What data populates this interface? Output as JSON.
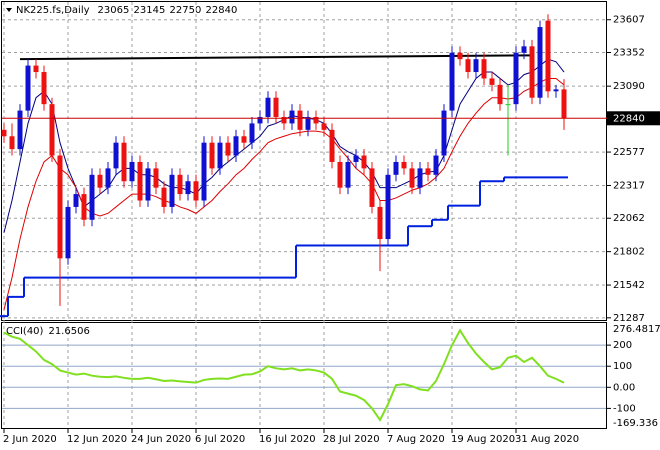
{
  "chart_data": [
    {
      "type": "candlestick",
      "title": "NK225.fs,Daily",
      "categories": [
        "2 Jun 2020",
        null,
        null,
        null,
        null,
        null,
        null,
        null,
        "12 Jun 2020",
        null,
        null,
        null,
        null,
        null,
        null,
        null,
        "24 Jun 2020",
        null,
        null,
        null,
        null,
        null,
        null,
        null,
        "6 Jul 2020",
        null,
        null,
        null,
        null,
        null,
        null,
        null,
        "16 Jul 2020",
        null,
        null,
        null,
        null,
        null,
        null,
        null,
        "28 Jul 2020",
        null,
        null,
        null,
        null,
        null,
        null,
        null,
        "7 Aug 2020",
        null,
        null,
        null,
        null,
        null,
        null,
        null,
        "19 Aug 2020",
        null,
        null,
        null,
        null,
        null,
        null,
        null,
        "31 Aug 2020",
        null,
        null,
        null,
        null,
        null,
        null
      ],
      "open": [
        22750,
        22700,
        22600,
        22900,
        23250,
        23200,
        22950,
        22550,
        21750,
        22150,
        22250,
        22050,
        22400,
        22300,
        22450,
        22650,
        22350,
        22500,
        22200,
        22450,
        22300,
        22150,
        22400,
        22250,
        22350,
        22200,
        22650,
        22450,
        22650,
        22550,
        22700,
        22650,
        22800,
        22850,
        23000,
        22850,
        22800,
        22900,
        22750,
        22850,
        22800,
        22750,
        22500,
        22300,
        22500,
        22550,
        22450,
        22150,
        21900,
        22400,
        22500,
        22450,
        22300,
        22450,
        22400,
        22550,
        22900,
        23350,
        23300,
        23200,
        23300,
        23150,
        23100,
        22950,
        22950,
        23350,
        23400,
        23000,
        23600,
        23050,
        23065
      ],
      "high": [
        22800,
        22800,
        22950,
        23300,
        23300,
        23250,
        23000,
        22600,
        22200,
        22300,
        22300,
        22450,
        22450,
        22500,
        22700,
        22700,
        22550,
        22550,
        22500,
        22500,
        22350,
        22450,
        22450,
        22400,
        22400,
        22700,
        22700,
        22700,
        22700,
        22750,
        22750,
        22850,
        22900,
        23050,
        23050,
        22900,
        22950,
        22950,
        22900,
        22900,
        22850,
        22800,
        22550,
        22550,
        22600,
        22600,
        22500,
        22200,
        22450,
        22550,
        22550,
        22500,
        22500,
        22500,
        22600,
        22950,
        23400,
        23400,
        23350,
        23350,
        23350,
        23200,
        23150,
        23100,
        23400,
        23450,
        23450,
        23600,
        23650,
        23100,
        23145
      ],
      "low": [
        22650,
        22550,
        22550,
        22850,
        23150,
        22900,
        22500,
        21380,
        21700,
        22100,
        22000,
        22000,
        22250,
        22250,
        22400,
        22300,
        22300,
        22150,
        22150,
        22250,
        22100,
        22100,
        22200,
        22200,
        22150,
        22150,
        22400,
        22400,
        22500,
        22500,
        22600,
        22600,
        22750,
        22800,
        22800,
        22750,
        22750,
        22700,
        22700,
        22750,
        22700,
        22450,
        22250,
        22250,
        22450,
        22400,
        22100,
        21650,
        21850,
        22350,
        22400,
        22250,
        22250,
        22350,
        22350,
        22500,
        22850,
        23250,
        23150,
        23150,
        23100,
        23050,
        22900,
        22550,
        22900,
        23300,
        22950,
        22950,
        23000,
        23000,
        22750
      ],
      "close": [
        22700,
        22600,
        22900,
        23250,
        23200,
        22950,
        22550,
        21750,
        22150,
        22250,
        22050,
        22400,
        22300,
        22450,
        22650,
        22350,
        22500,
        22200,
        22450,
        22300,
        22150,
        22400,
        22250,
        22350,
        22200,
        22650,
        22450,
        22650,
        22550,
        22700,
        22650,
        22800,
        22850,
        23000,
        22850,
        22800,
        22900,
        22750,
        22850,
        22800,
        22750,
        22500,
        22300,
        22500,
        22550,
        22450,
        22150,
        21900,
        22400,
        22500,
        22450,
        22300,
        22450,
        22400,
        22550,
        22900,
        23350,
        23300,
        23200,
        23300,
        23150,
        23100,
        22950,
        22950,
        23350,
        23400,
        23000,
        23550,
        23050,
        23065,
        22840
      ],
      "up_color": "#1010d0",
      "down_color": "#ee1111",
      "doji_color": "#22cc22",
      "series": [
        {
          "color": "#000080",
          "style": "line",
          "values": [
            21950,
            22200,
            22500,
            22800,
            23000,
            23050,
            22950,
            22650,
            22450,
            22300,
            22150,
            22200,
            22250,
            22300,
            22400,
            22450,
            22450,
            22400,
            22400,
            22380,
            22330,
            22300,
            22300,
            22280,
            22250,
            22330,
            22380,
            22450,
            22500,
            22550,
            22600,
            22650,
            22700,
            22780,
            22800,
            22830,
            22860,
            22850,
            22840,
            22830,
            22800,
            22720,
            22620,
            22580,
            22550,
            22500,
            22420,
            22300,
            22300,
            22300,
            22330,
            22360,
            22400,
            22420,
            22430,
            22550,
            22750,
            22950,
            23050,
            23150,
            23200,
            23200,
            23150,
            23100,
            23120,
            23180,
            23200,
            23250,
            23300,
            23280,
            23200
          ]
        },
        {
          "color": "#dd0000",
          "style": "line",
          "values": [
            21350,
            21600,
            21900,
            22150,
            22350,
            22500,
            22550,
            22450,
            22400,
            22300,
            22150,
            22100,
            22080,
            22100,
            22150,
            22200,
            22250,
            22250,
            22250,
            22230,
            22200,
            22180,
            22150,
            22130,
            22100,
            22150,
            22200,
            22270,
            22330,
            22400,
            22450,
            22520,
            22580,
            22650,
            22680,
            22700,
            22720,
            22730,
            22740,
            22740,
            22730,
            22680,
            22600,
            22530,
            22450,
            22400,
            22330,
            22200,
            22200,
            22220,
            22250,
            22280,
            22300,
            22330,
            22380,
            22450,
            22580,
            22700,
            22800,
            22880,
            22950,
            23000,
            23000,
            22990,
            23000,
            23050,
            23080,
            23120,
            23150,
            23150,
            23100
          ]
        },
        {
          "color": "#0020e0",
          "style": "step",
          "values": [
            21300,
            21450,
            21450,
            21600,
            21600,
            21600,
            21600,
            21600,
            21600,
            21600,
            21600,
            21600,
            21600,
            21600,
            21600,
            21600,
            21600,
            21600,
            21600,
            21600,
            21600,
            21600,
            21600,
            21600,
            21600,
            21600,
            21600,
            21600,
            21600,
            21600,
            21600,
            21600,
            21600,
            21600,
            21600,
            21600,
            21600,
            21850,
            21850,
            21850,
            21850,
            21850,
            21850,
            21850,
            21850,
            21850,
            21850,
            21850,
            21850,
            21850,
            21850,
            22000,
            22000,
            22000,
            22050,
            22050,
            22160,
            22160,
            22160,
            22160,
            22350,
            22350,
            22350,
            22380,
            22380,
            22380,
            22380,
            22380,
            22380,
            22380,
            22380
          ]
        }
      ],
      "trendline": {
        "x": [
          2,
          66
        ],
        "values": [
          23300,
          23330
        ],
        "color": "#000000"
      },
      "price_line": {
        "color": "#cc0000"
      },
      "ylim": [
        21270,
        23745
      ],
      "yticks": [
        23607,
        23352,
        23090,
        22577,
        22317,
        22062,
        21802,
        21542,
        21287
      ],
      "grid": true
    },
    {
      "type": "line",
      "title": "CCI(40)",
      "color": "#80e020",
      "values": [
        260,
        240,
        230,
        200,
        170,
        130,
        110,
        80,
        70,
        60,
        65,
        55,
        50,
        48,
        52,
        45,
        40,
        40,
        45,
        38,
        30,
        32,
        28,
        25,
        22,
        35,
        40,
        42,
        40,
        50,
        60,
        62,
        75,
        100,
        90,
        85,
        90,
        80,
        85,
        80,
        70,
        40,
        -20,
        -30,
        -40,
        -60,
        -100,
        -155,
        -80,
        10,
        15,
        5,
        -10,
        -15,
        30,
        110,
        200,
        270,
        210,
        160,
        120,
        85,
        95,
        140,
        150,
        120,
        140,
        100,
        55,
        40,
        21.6506
      ],
      "ylim": [
        -169.336,
        276.4817
      ],
      "ylim_labels": [
        "-169.336",
        "276.4817"
      ],
      "yticks": [
        200,
        100,
        {
          "value": 0,
          "label": "0.00"
        },
        -100
      ],
      "level_color": "#8fa8c8"
    }
  ]
}
